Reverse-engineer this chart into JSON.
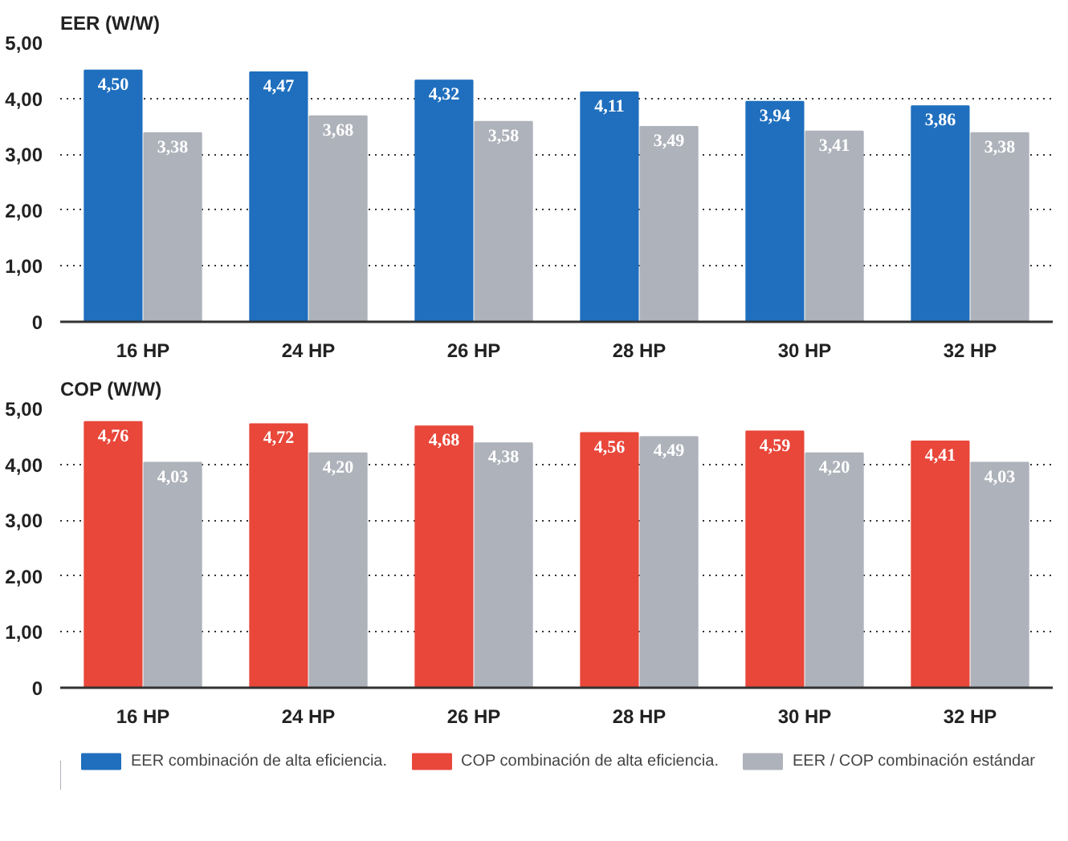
{
  "chart_data": [
    {
      "type": "bar",
      "ylabel": "EER (W/W)",
      "categories": [
        "16 HP",
        "24 HP",
        "26 HP",
        "28 HP",
        "30 HP",
        "32 HP"
      ],
      "series": [
        {
          "name": "EER combinación de alta eficiencia.",
          "color": "#1f6fbe",
          "values": [
            4.5,
            4.47,
            4.32,
            4.11,
            3.94,
            3.86
          ],
          "value_labels": [
            "4,50",
            "4,47",
            "4,32",
            "4,11",
            "3,94",
            "3,86"
          ]
        },
        {
          "color": "#aeb2ba",
          "values": [
            3.38,
            3.68,
            3.58,
            3.49,
            3.41,
            3.38
          ],
          "value_labels": [
            "3,38",
            "3,68",
            "3,58",
            "3,49",
            "3,41",
            "3,38"
          ]
        }
      ],
      "ylim": [
        0,
        5
      ],
      "yticks": [
        {
          "value": 0,
          "label": "0"
        },
        {
          "value": 1,
          "label": "1,00"
        },
        {
          "value": 2,
          "label": "2,00"
        },
        {
          "value": 3,
          "label": "3,00"
        },
        {
          "value": 4,
          "label": "4,00"
        },
        {
          "value": 5,
          "label": "5,00"
        }
      ],
      "grid": "y"
    },
    {
      "type": "bar",
      "ylabel": "COP (W/W)",
      "categories": [
        "16 HP",
        "24 HP",
        "26 HP",
        "28 HP",
        "30 HP",
        "32 HP"
      ],
      "series": [
        {
          "name": "COP combinación de alta eficiencia.",
          "color": "#e8473a",
          "values": [
            4.76,
            4.72,
            4.68,
            4.56,
            4.59,
            4.41
          ],
          "value_labels": [
            "4,76",
            "4,72",
            "4,68",
            "4,56",
            "4,59",
            "4,41"
          ]
        },
        {
          "name": "EER / COP combinación estándar",
          "color": "#aeb2ba",
          "values": [
            4.03,
            4.2,
            4.38,
            4.49,
            4.2,
            4.03
          ],
          "value_labels": [
            "4,03",
            "4,20",
            "4,38",
            "4,49",
            "4,20",
            "4,03"
          ]
        }
      ],
      "ylim": [
        0,
        5
      ],
      "yticks": [
        {
          "value": 0,
          "label": "0"
        },
        {
          "value": 1,
          "label": "1,00"
        },
        {
          "value": 2,
          "label": "2,00"
        },
        {
          "value": 3,
          "label": "3,00"
        },
        {
          "value": 4,
          "label": "4,00"
        },
        {
          "value": 5,
          "label": "5,00"
        }
      ],
      "grid": "y",
      "legend": "bottom"
    }
  ]
}
